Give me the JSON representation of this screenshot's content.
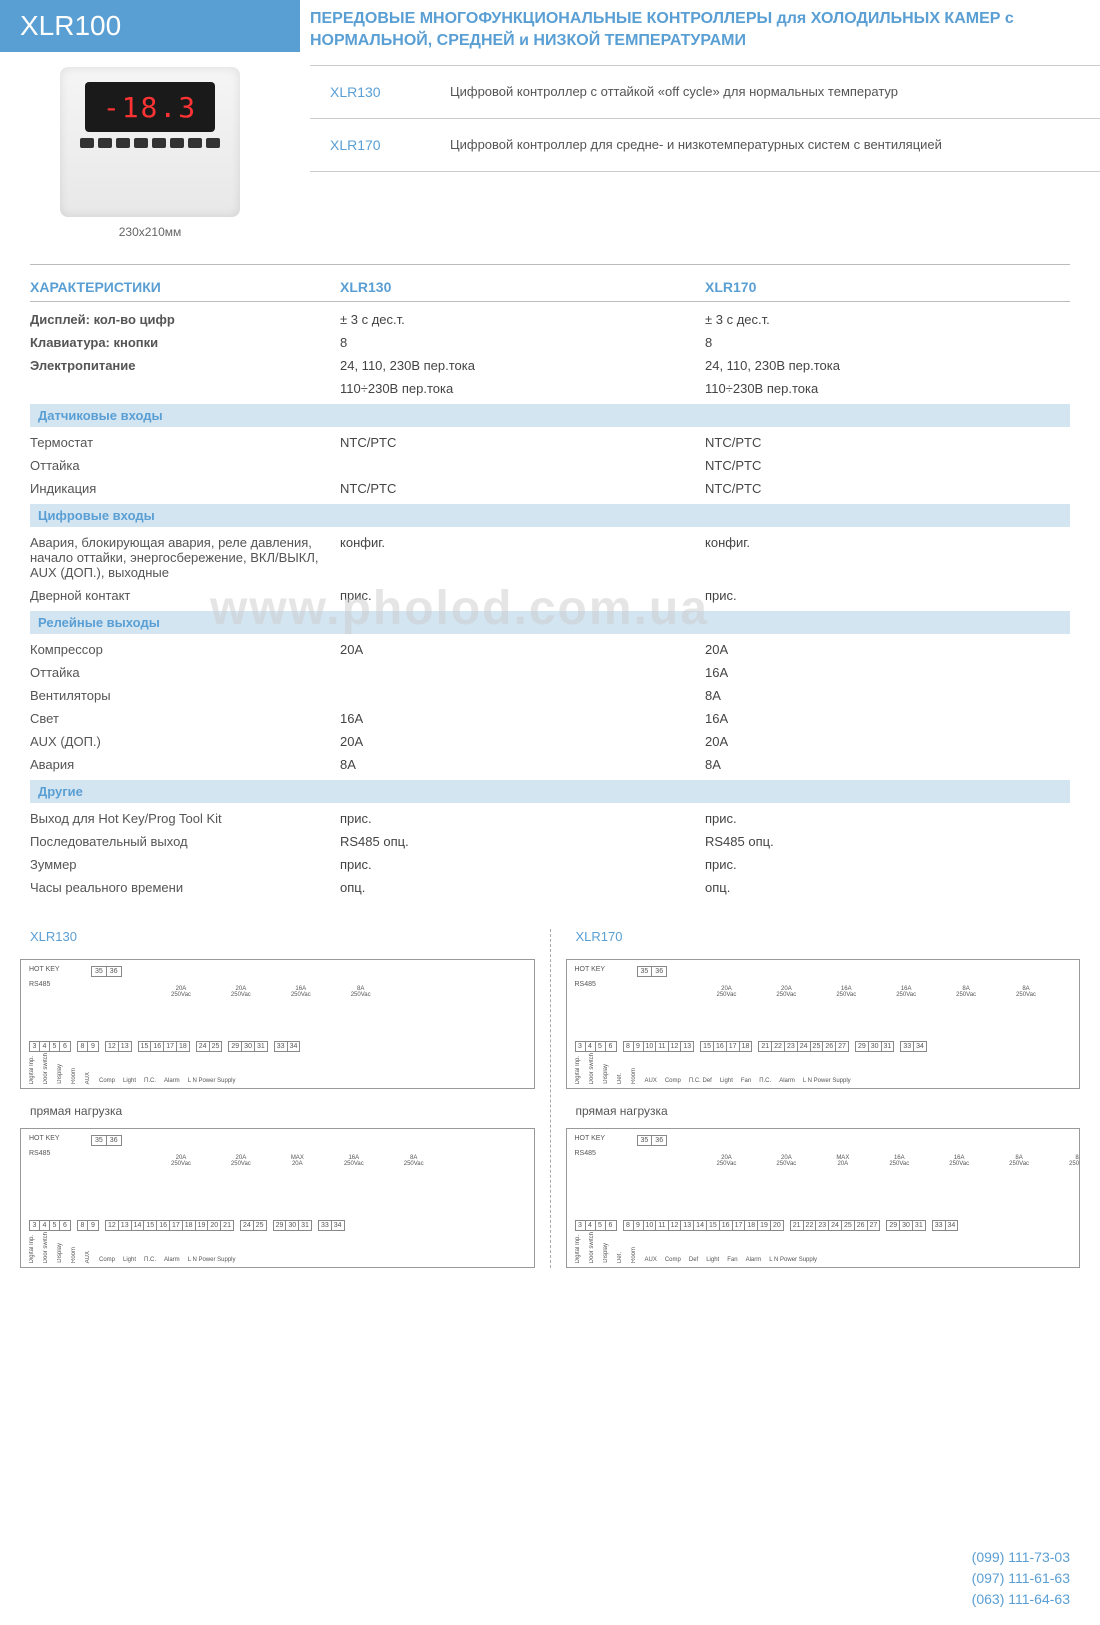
{
  "header": {
    "model": "XLR100",
    "display_value": "-18.3",
    "dimensions": "230х210мм",
    "title": "ПЕРЕДОВЫЕ МНОГОФУНКЦИОНАЛЬНЫЕ КОНТРОЛЛЕРЫ для ХОЛОДИЛЬНЫХ КАМЕР с НОРМАЛЬНОЙ, СРЕДНЕЙ и НИЗКОЙ ТЕМПЕРАТУРАМИ",
    "variants": [
      {
        "code": "XLR130",
        "desc": "Цифровой контроллер с оттайкой «off cycle» для нормальных температур"
      },
      {
        "code": "XLR170",
        "desc": "Цифровой контроллер для средне- и низкотемпературных систем с вентиляцией"
      }
    ]
  },
  "colors": {
    "brand": "#5a9fd4",
    "band": "#d4e5f2",
    "text": "#555555",
    "rule": "#bbbbbb"
  },
  "spec": {
    "header": {
      "title": "ХАРАКТЕРИСТИКИ",
      "col1": "XLR130",
      "col2": "XLR170"
    },
    "top": [
      {
        "label": "Дисплей: кол-во цифр",
        "v1": "± 3 с дес.т.",
        "v2": "± 3 с дес.т.",
        "bold": true
      },
      {
        "label": "Клавиатура: кнопки",
        "v1": "8",
        "v2": "8",
        "bold": true
      },
      {
        "label": "Электропитание",
        "v1": "24, 110, 230В пер.тока",
        "v2": "24, 110, 230В пер.тока",
        "bold": true
      },
      {
        "label": "",
        "v1": "110÷230В пер.тока",
        "v2": "110÷230В пер.тока"
      }
    ],
    "sections": [
      {
        "title": "Датчиковые входы",
        "rows": [
          {
            "label": "Термостат",
            "v1": "NTC/PTC",
            "v2": "NTC/PTC"
          },
          {
            "label": "Оттайка",
            "v1": "",
            "v2": "NTC/PTC"
          },
          {
            "label": "Индикация",
            "v1": "NTC/PTC",
            "v2": "NTC/PTC"
          }
        ]
      },
      {
        "title": "Цифровые входы",
        "rows": [
          {
            "label": "Авария, блокирующая авария, реле давления, начало оттайки, энергосбережение, ВКЛ/ВЫКЛ, AUX (ДОП.), выходные",
            "v1": "конфиг.",
            "v2": "конфиг."
          },
          {
            "label": "Дверной контакт",
            "v1": "прис.",
            "v2": "прис."
          }
        ]
      },
      {
        "title": "Релейные выходы",
        "rows": [
          {
            "label": "Компрессор",
            "v1": "20A",
            "v2": "20A"
          },
          {
            "label": "Оттайка",
            "v1": "",
            "v2": "16A"
          },
          {
            "label": "Вентиляторы",
            "v1": "",
            "v2": "8A"
          },
          {
            "label": "Свет",
            "v1": "16A",
            "v2": "16A"
          },
          {
            "label": "AUX (ДОП.)",
            "v1": "20A",
            "v2": "20A"
          },
          {
            "label": "Авария",
            "v1": "8A",
            "v2": "8A"
          }
        ]
      },
      {
        "title": "Другие",
        "rows": [
          {
            "label": "Выход для Hot Key/Prog Tool Kit",
            "v1": "прис.",
            "v2": "прис."
          },
          {
            "label": "Последовательный выход",
            "v1": "RS485 опц.",
            "v2": "RS485 опц."
          },
          {
            "label": "Зуммер",
            "v1": "прис.",
            "v2": "прис."
          },
          {
            "label": "Часы реального времени",
            "v1": "опц.",
            "v2": "опц."
          }
        ]
      }
    ]
  },
  "diagrams": {
    "left_title": "XLR130",
    "right_title": "XLR170",
    "sub": "прямая нагрузка",
    "hotkey": "HOT KEY",
    "rs485": "RS485",
    "top_terms": [
      "35",
      "36"
    ],
    "xlr130_a": {
      "ratings": [
        "20A 250Vac",
        "20A 250Vac",
        "16A 250Vac",
        "8A 250Vac"
      ],
      "groups": [
        [
          "3",
          "4",
          "5",
          "6"
        ],
        [
          "8",
          "9"
        ],
        [
          "12",
          "13"
        ],
        [
          "15",
          "16",
          "17",
          "18"
        ],
        [
          "24",
          "25"
        ],
        [
          "29",
          "30",
          "31"
        ],
        [
          "33",
          "34"
        ]
      ],
      "labels": [
        "Digital Inp.",
        "Door switch",
        "Display",
        "Room",
        "AUX",
        "Comp",
        "Light",
        "П.С.",
        "Alarm",
        "L N Power Supply"
      ]
    },
    "xlr130_b": {
      "ratings": [
        "20A 250Vac",
        "20A 250Vac",
        "MAX 20A",
        "16A 250Vac",
        "8A 250Vac"
      ],
      "groups": [
        [
          "3",
          "4",
          "5",
          "6"
        ],
        [
          "8",
          "9"
        ],
        [
          "12",
          "13",
          "14",
          "15",
          "16",
          "17",
          "18",
          "19",
          "20",
          "21"
        ],
        [
          "24",
          "25"
        ],
        [
          "29",
          "30",
          "31"
        ],
        [
          "33",
          "34"
        ]
      ],
      "labels": [
        "Digital Inp.",
        "Door switch",
        "Display",
        "Room",
        "AUX",
        "Comp",
        "Light",
        "П.С.",
        "Alarm",
        "L N Power Supply"
      ]
    },
    "xlr170_a": {
      "ratings": [
        "20A 250Vac",
        "20A 250Vac",
        "16A 250Vac",
        "16A 250Vac",
        "8A 250Vac",
        "8A 250Vac"
      ],
      "groups": [
        [
          "3",
          "4",
          "5",
          "6"
        ],
        [
          "8",
          "9",
          "10",
          "11",
          "12",
          "13"
        ],
        [
          "15",
          "16",
          "17",
          "18"
        ],
        [
          "21",
          "22",
          "23",
          "24",
          "25",
          "26",
          "27"
        ],
        [
          "29",
          "30",
          "31"
        ],
        [
          "33",
          "34"
        ]
      ],
      "labels": [
        "Digital Inp.",
        "Door switch",
        "Display",
        "Def.",
        "Room",
        "AUX",
        "Comp",
        "П.С. Def",
        "Light",
        "Fan",
        "П.С.",
        "Alarm",
        "L N Power Supply"
      ]
    },
    "xlr170_b": {
      "ratings": [
        "20A 250Vac",
        "20A 250Vac",
        "MAX 20A",
        "16A 250Vac",
        "16A 250Vac",
        "8A 250Vac",
        "8A 250Vac"
      ],
      "groups": [
        [
          "3",
          "4",
          "5",
          "6"
        ],
        [
          "8",
          "9",
          "10",
          "11",
          "12",
          "13",
          "14",
          "15",
          "16",
          "17",
          "18",
          "19",
          "20"
        ],
        [
          "21",
          "22",
          "23",
          "24",
          "25",
          "26",
          "27"
        ],
        [
          "29",
          "30",
          "31"
        ],
        [
          "33",
          "34"
        ]
      ],
      "labels": [
        "Digital Inp.",
        "Door switch",
        "Display",
        "Def.",
        "Room",
        "AUX",
        "Comp",
        "Def",
        "Light",
        "Fan",
        "Alarm",
        "L N Power Supply"
      ]
    }
  },
  "phones": [
    "(099) 111-73-03",
    "(097) 111-61-63",
    "(063) 111-64-63"
  ]
}
